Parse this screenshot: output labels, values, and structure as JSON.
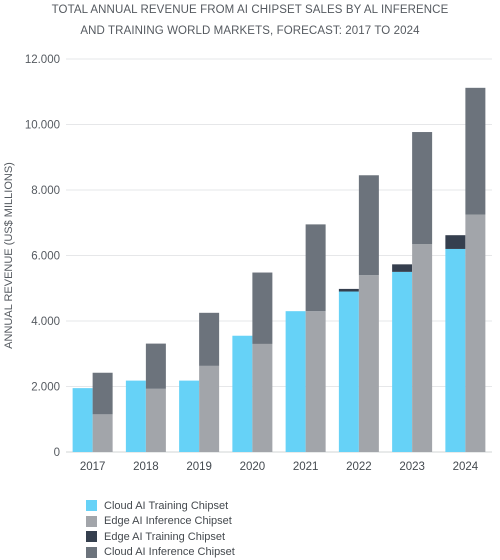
{
  "chart_data": {
    "type": "bar",
    "stacked_groups": true,
    "title_lines": [
      "TOTAL ANNUAL REVENUE FROM AI CHIPSET SALES BY AL INFERENCE",
      "AND TRAINING WORLD MARKETS, FORECAST: 2017 TO 2024"
    ],
    "ylabel": "ANNUAL REVENUE (US$ MILLIONS)",
    "xlabel": "",
    "ylim": [
      0,
      12000
    ],
    "yticks": [
      0,
      2000,
      4000,
      6000,
      8000,
      10000,
      12000
    ],
    "ytick_labels": [
      "0",
      "2.000",
      "4.000",
      "6.000",
      "8.000",
      "10.000",
      "12.000"
    ],
    "grid": true,
    "legend_position": "bottom-left",
    "categories": [
      "2017",
      "2018",
      "2019",
      "2020",
      "2021",
      "2022",
      "2023",
      "2024"
    ],
    "series": [
      {
        "name": "Cloud AI Training Chipset",
        "color": "#66d2f7",
        "stack": "training",
        "values": [
          1950,
          2180,
          2180,
          3550,
          4300,
          4900,
          5500,
          6200
        ]
      },
      {
        "name": "Edge AI Inference Chipset",
        "color": "#a2a5aa",
        "stack": "inference",
        "values": [
          1150,
          1930,
          2630,
          3300,
          4300,
          5400,
          6350,
          7250
        ]
      },
      {
        "name": "Edge AI Training Chipset",
        "color": "#353f4e",
        "stack": "training",
        "values": [
          0,
          0,
          0,
          0,
          0,
          80,
          230,
          420
        ]
      },
      {
        "name": "Cloud AI Inference Chipset",
        "color": "#6c737c",
        "stack": "inference",
        "values": [
          1270,
          1380,
          1620,
          2180,
          2650,
          3050,
          3420,
          3870
        ]
      }
    ]
  }
}
